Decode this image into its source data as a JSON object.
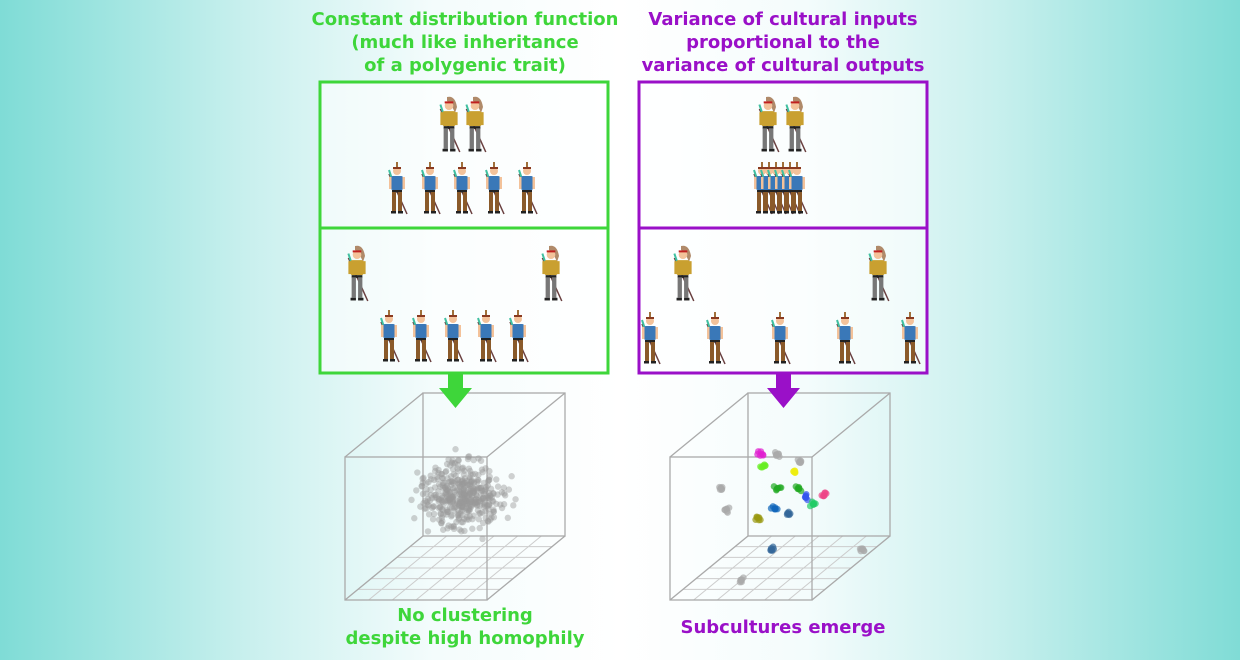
{
  "left": {
    "title_lines": [
      "Constant distribution function",
      "(much like inheritance",
      "of a polygenic trait)"
    ],
    "caption_lines": [
      "No clustering",
      "despite high homophily"
    ],
    "color": "#3ed63a"
  },
  "right": {
    "title_lines": [
      "Variance of cultural inputs",
      "proportional to the",
      "variance of cultural outputs"
    ],
    "caption_lines": [
      "Subcultures emerge"
    ],
    "color": "#9a10c8"
  },
  "icons": {
    "chief": "chief-figure-icon",
    "warrior": "warrior-figure-icon",
    "arrow": "arrow-down-icon"
  },
  "colors": {
    "cluster_colors": [
      "#e020d0",
      "#66ee22",
      "#eeee10",
      "#22aa22",
      "#3355ee",
      "#ee4488",
      "#22cc66",
      "#1166bb",
      "#999911",
      "#336699",
      "#aaaaaa"
    ]
  }
}
